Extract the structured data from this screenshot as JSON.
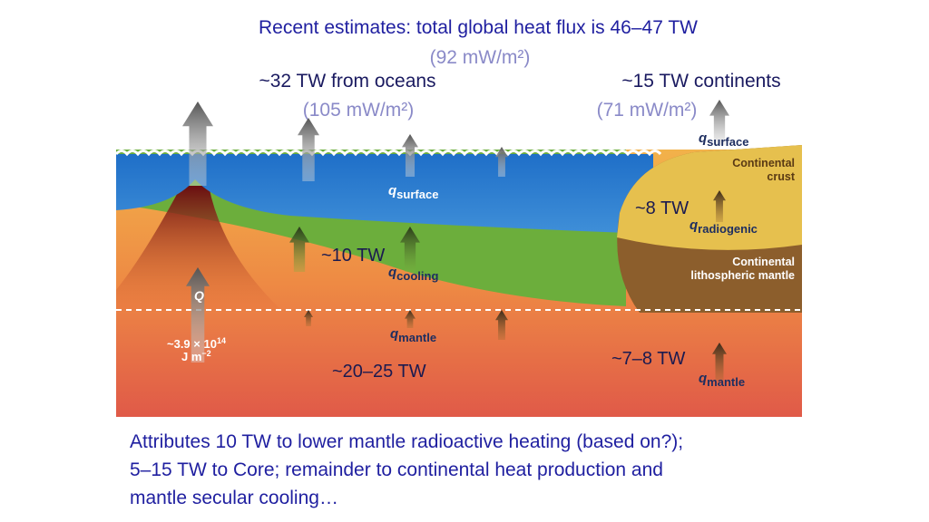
{
  "header": {
    "title": "Recent estimates: total global heat flux is 46–47 TW",
    "subtitle": "(92 mW/m²)"
  },
  "oceans": {
    "label": "~32 TW from oceans",
    "flux": "(105 mW/m²)"
  },
  "continents": {
    "label": "~15 TW continents",
    "flux": "(71 mW/m²)"
  },
  "figure": {
    "q_surface_continent": {
      "symbol": "q",
      "sub": "surface"
    },
    "continental_crust": [
      "Continental",
      "crust"
    ],
    "radiogenic_tw": "~8 TW",
    "q_radiogenic": {
      "symbol": "q",
      "sub": "radiogenic"
    },
    "continental_lithospheric_mantle": [
      "Continental",
      "lithospheric mantle"
    ],
    "q_surface_ocean": {
      "symbol": "q",
      "sub": "surface"
    },
    "cooling_tw": "~10 TW",
    "q_cooling": {
      "symbol": "q",
      "sub": "cooling"
    },
    "Q": "Q",
    "Q_value": {
      "mantissa": "~3.9 × 10",
      "exponent": "14",
      "unit": "J m",
      "unit_exponent": "−2"
    },
    "q_mantle_ocean": {
      "symbol": "q",
      "sub": "mantle"
    },
    "ocean_mantle_tw": "~20–25 TW",
    "continent_mantle_tw": "~7–8 TW",
    "q_mantle_continent": {
      "symbol": "q",
      "sub": "mantle"
    }
  },
  "footer": [
    "Attributes 10 TW to lower mantle radioactive heating (based on?);",
    "5–15 TW to Core; remainder to continental heat production and",
    "mantle secular cooling…"
  ]
}
